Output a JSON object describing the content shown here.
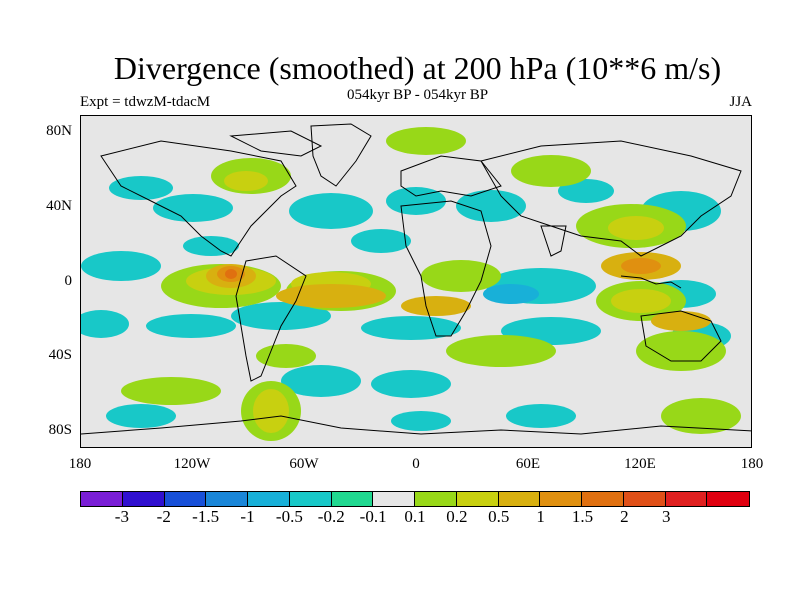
{
  "title": "Divergence (smoothed) at 200 hPa (10**6 m/s)",
  "subtitle": "054kyr BP - 054kyr BP",
  "expt_label": "Expt = tdwzM-tdacM",
  "season": "JJA",
  "lat_labels": [
    "80N",
    "40N",
    "0",
    "40S",
    "80S"
  ],
  "lon_labels": [
    "180",
    "120W",
    "60W",
    "0",
    "60E",
    "120E",
    "180"
  ],
  "colorbar": {
    "colors": [
      "#7a1ed6",
      "#3010d0",
      "#1850d8",
      "#1a86d8",
      "#18b0d8",
      "#18c8c8",
      "#20d890",
      "#e6e6e6",
      "#98d818",
      "#c8d010",
      "#d8b010",
      "#e09010",
      "#e07010",
      "#e05018",
      "#e02020",
      "#e00010"
    ],
    "labels": [
      "-3",
      "-2",
      "-1.5",
      "-1",
      "-0.5",
      "-0.2",
      "-0.1",
      "0.1",
      "0.2",
      "0.5",
      "1",
      "1.5",
      "2",
      "3"
    ]
  }
}
